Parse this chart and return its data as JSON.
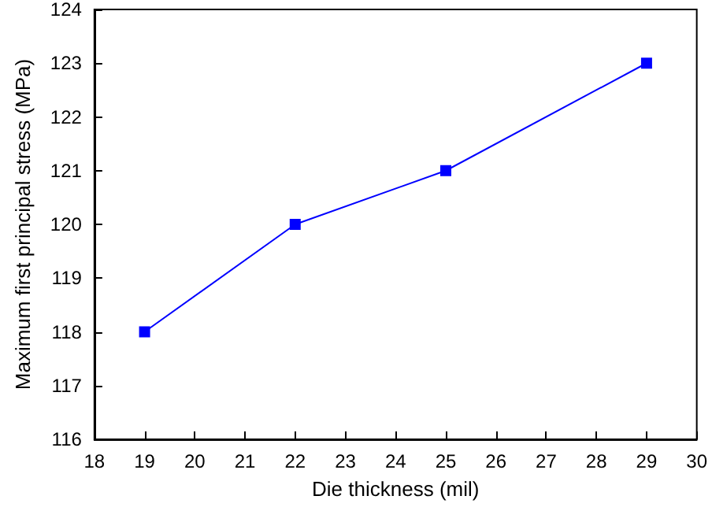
{
  "chart_data": {
    "type": "line",
    "xlabel": "Die thickness (mil)",
    "ylabel": "Maximum first principal stress (MPa)",
    "x": [
      19,
      22,
      25,
      29
    ],
    "series": [
      {
        "color": "#0000ff",
        "values": [
          118,
          120,
          121,
          123
        ]
      }
    ],
    "xlim": [
      18,
      30
    ],
    "xticks": [
      18,
      19,
      20,
      21,
      22,
      23,
      24,
      25,
      26,
      27,
      28,
      29,
      30
    ],
    "ylim": [
      116,
      124
    ],
    "yticks": [
      116,
      117,
      118,
      119,
      120,
      121,
      122,
      123,
      124
    ],
    "marker": "square",
    "line_style": "solid"
  }
}
